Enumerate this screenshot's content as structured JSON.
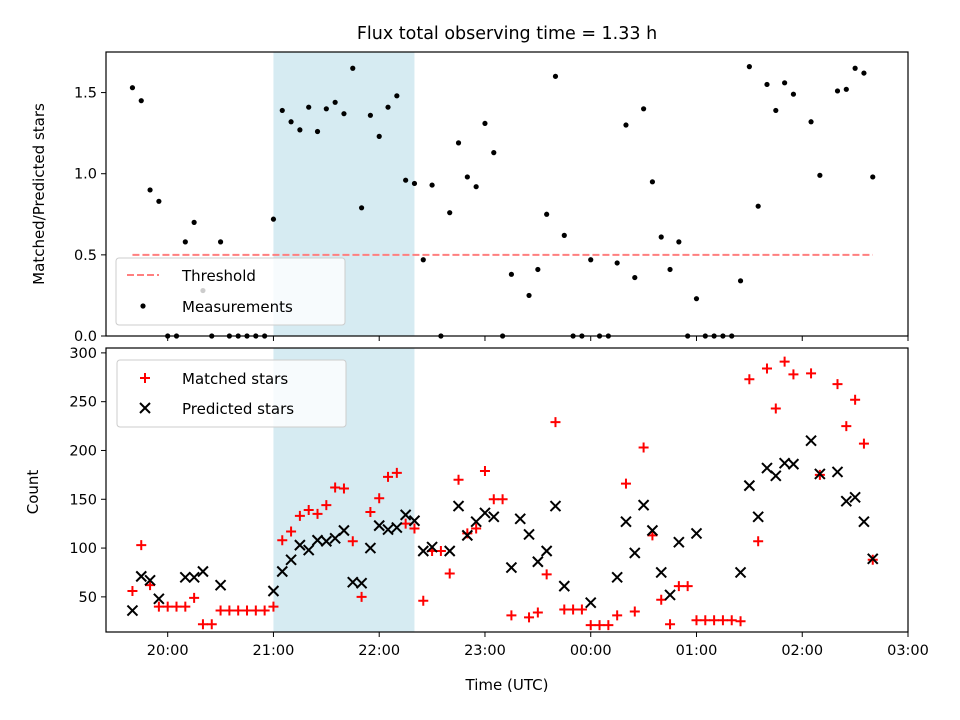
{
  "chart_data": [
    {
      "type": "scatter",
      "title": "Flux total observing time = 1.33 h",
      "xlabel": "",
      "ylabel": "Matched/Predicted stars",
      "xlim": [
        "19:25",
        "03:00"
      ],
      "ylim": [
        0,
        1.75
      ],
      "yticks": [
        0.0,
        0.5,
        1.0,
        1.5
      ],
      "ytick_labels": [
        "0.0",
        "0.5",
        "1.0",
        "1.5"
      ],
      "highlight_span": {
        "from": "21:00",
        "to": "22:20",
        "color": "#add8e6"
      },
      "threshold": {
        "name": "Threshold",
        "value": 0.5,
        "from": "19:40",
        "to": "02:40",
        "color": "#ff7f7f"
      },
      "legend_position": "lower-left",
      "series": [
        {
          "name": "Measurements",
          "marker": "dot",
          "color": "#000000",
          "points": [
            [
              "19:40",
              1.53
            ],
            [
              "19:45",
              1.45
            ],
            [
              "19:50",
              0.9
            ],
            [
              "19:55",
              0.83
            ],
            [
              "20:00",
              0.0
            ],
            [
              "20:05",
              0.0
            ],
            [
              "20:10",
              0.58
            ],
            [
              "20:15",
              0.7
            ],
            [
              "20:20",
              0.28
            ],
            [
              "20:25",
              0.0
            ],
            [
              "20:30",
              0.58
            ],
            [
              "20:35",
              0.0
            ],
            [
              "20:40",
              0.0
            ],
            [
              "20:45",
              0.0
            ],
            [
              "20:50",
              0.0
            ],
            [
              "20:55",
              0.0
            ],
            [
              "21:00",
              0.72
            ],
            [
              "21:05",
              1.39
            ],
            [
              "21:10",
              1.32
            ],
            [
              "21:15",
              1.27
            ],
            [
              "21:20",
              1.41
            ],
            [
              "21:25",
              1.26
            ],
            [
              "21:30",
              1.4
            ],
            [
              "21:35",
              1.44
            ],
            [
              "21:40",
              1.37
            ],
            [
              "21:45",
              1.65
            ],
            [
              "21:50",
              0.79
            ],
            [
              "21:55",
              1.36
            ],
            [
              "22:00",
              1.23
            ],
            [
              "22:05",
              1.41
            ],
            [
              "22:10",
              1.48
            ],
            [
              "22:15",
              0.96
            ],
            [
              "22:20",
              0.94
            ],
            [
              "22:25",
              0.47
            ],
            [
              "22:30",
              0.93
            ],
            [
              "22:35",
              0.0
            ],
            [
              "22:40",
              0.76
            ],
            [
              "22:45",
              1.19
            ],
            [
              "22:50",
              0.98
            ],
            [
              "22:55",
              0.92
            ],
            [
              "23:00",
              1.31
            ],
            [
              "23:05",
              1.13
            ],
            [
              "23:10",
              0.0
            ],
            [
              "23:15",
              0.38
            ],
            [
              "23:25",
              0.25
            ],
            [
              "23:30",
              0.41
            ],
            [
              "23:35",
              0.75
            ],
            [
              "23:40",
              1.6
            ],
            [
              "23:45",
              0.62
            ],
            [
              "23:50",
              0.0
            ],
            [
              "23:55",
              0.0
            ],
            [
              "00:00",
              0.47
            ],
            [
              "00:05",
              0.0
            ],
            [
              "00:10",
              0.0
            ],
            [
              "00:15",
              0.45
            ],
            [
              "00:20",
              1.3
            ],
            [
              "00:25",
              0.36
            ],
            [
              "00:30",
              1.4
            ],
            [
              "00:35",
              0.95
            ],
            [
              "00:40",
              0.61
            ],
            [
              "00:45",
              0.41
            ],
            [
              "00:50",
              0.58
            ],
            [
              "00:55",
              0.0
            ],
            [
              "01:00",
              0.23
            ],
            [
              "01:05",
              0.0
            ],
            [
              "01:10",
              0.0
            ],
            [
              "01:15",
              0.0
            ],
            [
              "01:20",
              0.0
            ],
            [
              "01:25",
              0.34
            ],
            [
              "01:30",
              1.66
            ],
            [
              "01:35",
              0.8
            ],
            [
              "01:40",
              1.55
            ],
            [
              "01:45",
              1.39
            ],
            [
              "01:50",
              1.56
            ],
            [
              "01:55",
              1.49
            ],
            [
              "02:05",
              1.32
            ],
            [
              "02:10",
              0.99
            ],
            [
              "02:20",
              1.51
            ],
            [
              "02:25",
              1.52
            ],
            [
              "02:30",
              1.65
            ],
            [
              "02:35",
              1.62
            ],
            [
              "02:40",
              0.98
            ]
          ]
        }
      ],
      "legend": [
        "Threshold",
        "Measurements"
      ]
    },
    {
      "type": "scatter",
      "title": "",
      "xlabel": "Time (UTC)",
      "ylabel": "Count",
      "xlim": [
        "19:25",
        "03:00"
      ],
      "ylim": [
        14,
        305
      ],
      "yticks": [
        50,
        100,
        150,
        200,
        250,
        300
      ],
      "ytick_labels": [
        "50",
        "100",
        "150",
        "200",
        "250",
        "300"
      ],
      "xtick_labels": [
        "20:00",
        "21:00",
        "22:00",
        "23:00",
        "00:00",
        "01:00",
        "02:00",
        "03:00"
      ],
      "highlight_span": {
        "from": "21:00",
        "to": "22:20",
        "color": "#add8e6"
      },
      "legend_position": "top-left",
      "series": [
        {
          "name": "Matched stars",
          "marker": "plus",
          "color": "#ff0000",
          "points": [
            [
              "19:40",
              56
            ],
            [
              "19:45",
              103
            ],
            [
              "19:50",
              62
            ],
            [
              "19:55",
              40
            ],
            [
              "20:00",
              40
            ],
            [
              "20:05",
              40
            ],
            [
              "20:10",
              40
            ],
            [
              "20:15",
              49
            ],
            [
              "20:20",
              22
            ],
            [
              "20:25",
              22
            ],
            [
              "20:30",
              36
            ],
            [
              "20:35",
              36
            ],
            [
              "20:40",
              36
            ],
            [
              "20:45",
              36
            ],
            [
              "20:50",
              36
            ],
            [
              "20:55",
              36
            ],
            [
              "21:00",
              40
            ],
            [
              "21:05",
              108
            ],
            [
              "21:10",
              117
            ],
            [
              "21:15",
              133
            ],
            [
              "21:20",
              139
            ],
            [
              "21:25",
              135
            ],
            [
              "21:30",
              144
            ],
            [
              "21:35",
              162
            ],
            [
              "21:40",
              161
            ],
            [
              "21:45",
              107
            ],
            [
              "21:50",
              50
            ],
            [
              "21:55",
              137
            ],
            [
              "22:00",
              151
            ],
            [
              "22:05",
              173
            ],
            [
              "22:10",
              177
            ],
            [
              "22:15",
              125
            ],
            [
              "22:20",
              120
            ],
            [
              "22:25",
              46
            ],
            [
              "22:30",
              97
            ],
            [
              "22:35",
              97
            ],
            [
              "22:40",
              74
            ],
            [
              "22:45",
              170
            ],
            [
              "22:50",
              115
            ],
            [
              "22:55",
              120
            ],
            [
              "23:00",
              179
            ],
            [
              "23:05",
              150
            ],
            [
              "23:10",
              150
            ],
            [
              "23:15",
              31
            ],
            [
              "23:25",
              29
            ],
            [
              "23:30",
              34
            ],
            [
              "23:35",
              73
            ],
            [
              "23:40",
              229
            ],
            [
              "23:45",
              37
            ],
            [
              "23:50",
              37
            ],
            [
              "23:55",
              37
            ],
            [
              "00:00",
              21
            ],
            [
              "00:05",
              21
            ],
            [
              "00:10",
              21
            ],
            [
              "00:15",
              31
            ],
            [
              "00:20",
              166
            ],
            [
              "00:25",
              35
            ],
            [
              "00:30",
              203
            ],
            [
              "00:35",
              113
            ],
            [
              "00:40",
              47
            ],
            [
              "00:45",
              22
            ],
            [
              "00:50",
              61
            ],
            [
              "00:55",
              61
            ],
            [
              "01:00",
              26
            ],
            [
              "01:05",
              26
            ],
            [
              "01:10",
              26
            ],
            [
              "01:15",
              26
            ],
            [
              "01:20",
              26
            ],
            [
              "01:25",
              25
            ],
            [
              "01:30",
              273
            ],
            [
              "01:35",
              107
            ],
            [
              "01:40",
              284
            ],
            [
              "01:45",
              243
            ],
            [
              "01:50",
              291
            ],
            [
              "01:55",
              278
            ],
            [
              "02:05",
              279
            ],
            [
              "02:10",
              175
            ],
            [
              "02:20",
              268
            ],
            [
              "02:25",
              225
            ],
            [
              "02:30",
              252
            ],
            [
              "02:35",
              207
            ],
            [
              "02:40",
              88
            ]
          ]
        },
        {
          "name": "Predicted stars",
          "marker": "x",
          "color": "#000000",
          "points": [
            [
              "19:40",
              36
            ],
            [
              "19:45",
              71
            ],
            [
              "19:50",
              67
            ],
            [
              "19:55",
              48
            ],
            [
              "20:10",
              70
            ],
            [
              "20:15",
              70
            ],
            [
              "20:20",
              76
            ],
            [
              "20:30",
              62
            ],
            [
              "21:00",
              56
            ],
            [
              "21:05",
              76
            ],
            [
              "21:10",
              88
            ],
            [
              "21:15",
              103
            ],
            [
              "21:20",
              98
            ],
            [
              "21:25",
              108
            ],
            [
              "21:30",
              107
            ],
            [
              "21:35",
              110
            ],
            [
              "21:40",
              118
            ],
            [
              "21:45",
              65
            ],
            [
              "21:50",
              64
            ],
            [
              "21:55",
              100
            ],
            [
              "22:00",
              123
            ],
            [
              "22:05",
              119
            ],
            [
              "22:10",
              121
            ],
            [
              "22:15",
              134
            ],
            [
              "22:20",
              128
            ],
            [
              "22:25",
              97
            ],
            [
              "22:30",
              101
            ],
            [
              "22:40",
              97
            ],
            [
              "22:45",
              143
            ],
            [
              "22:50",
              113
            ],
            [
              "22:55",
              127
            ],
            [
              "23:00",
              136
            ],
            [
              "23:05",
              132
            ],
            [
              "23:15",
              80
            ],
            [
              "23:20",
              130
            ],
            [
              "23:25",
              114
            ],
            [
              "23:30",
              86
            ],
            [
              "23:35",
              97
            ],
            [
              "23:40",
              143
            ],
            [
              "23:45",
              61
            ],
            [
              "00:00",
              44
            ],
            [
              "00:15",
              70
            ],
            [
              "00:20",
              127
            ],
            [
              "00:25",
              95
            ],
            [
              "00:30",
              144
            ],
            [
              "00:35",
              118
            ],
            [
              "00:40",
              75
            ],
            [
              "00:45",
              52
            ],
            [
              "00:50",
              106
            ],
            [
              "01:00",
              115
            ],
            [
              "01:25",
              75
            ],
            [
              "01:30",
              164
            ],
            [
              "01:35",
              132
            ],
            [
              "01:40",
              182
            ],
            [
              "01:45",
              174
            ],
            [
              "01:50",
              187
            ],
            [
              "01:55",
              186
            ],
            [
              "02:05",
              210
            ],
            [
              "02:10",
              176
            ],
            [
              "02:20",
              178
            ],
            [
              "02:25",
              148
            ],
            [
              "02:30",
              152
            ],
            [
              "02:35",
              127
            ],
            [
              "02:40",
              89
            ]
          ]
        }
      ],
      "legend": [
        "Matched stars",
        "Predicted stars"
      ]
    }
  ]
}
